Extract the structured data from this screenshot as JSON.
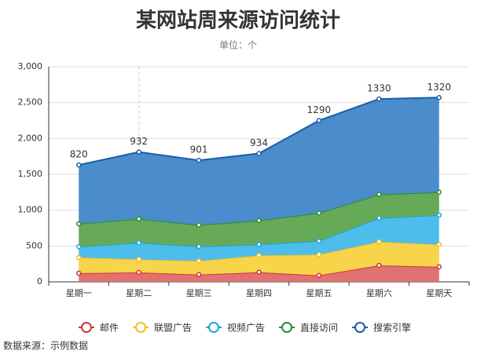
{
  "chart_data": {
    "type": "stacked-area",
    "title": "某网站周来源访问统计",
    "subtitle": "单位：个",
    "source": "数据来源：示例数据",
    "categories": [
      "星期一",
      "星期二",
      "星期三",
      "星期四",
      "星期五",
      "星期六",
      "星期天"
    ],
    "series": [
      {
        "name": "邮件",
        "color": "#d0343a",
        "fill": "#e07272",
        "values": [
          120,
          132,
          101,
          134,
          90,
          230,
          210
        ]
      },
      {
        "name": "联盟广告",
        "color": "#f0c020",
        "fill": "#f7d44a",
        "values": [
          220,
          182,
          191,
          234,
          290,
          330,
          310
        ]
      },
      {
        "name": "视频广告",
        "color": "#1ba6d8",
        "fill": "#4dbdec",
        "values": [
          150,
          232,
          201,
          154,
          190,
          330,
          410
        ]
      },
      {
        "name": "直接访问",
        "color": "#2e8a2e",
        "fill": "#66aa58",
        "values": [
          320,
          332,
          301,
          334,
          390,
          330,
          320
        ]
      },
      {
        "name": "搜索引擎",
        "color": "#1a5ea8",
        "fill": "#4a8ccc",
        "values": [
          820,
          932,
          901,
          934,
          1290,
          1330,
          1320
        ],
        "show_labels": true
      }
    ],
    "ylim": [
      0,
      3000
    ],
    "yticks": [
      0,
      {
        "value": 500,
        "label": "500"
      },
      {
        "value": 1000,
        "label": "1,000"
      },
      {
        "value": 1500,
        "label": "1,500"
      },
      {
        "value": 2000,
        "label": "2,000"
      },
      {
        "value": 2500,
        "label": "2,500"
      },
      {
        "value": 3000,
        "label": "3,000"
      }
    ],
    "grid": true
  }
}
